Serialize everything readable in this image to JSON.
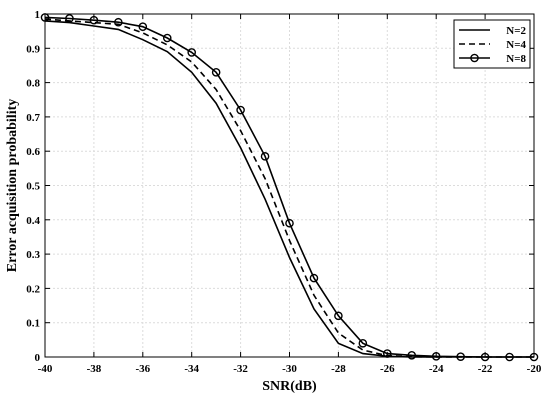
{
  "chart_data": {
    "type": "line",
    "xlabel": "SNR(dB)",
    "ylabel": "Error acquisition probability",
    "xlim": [
      -40,
      -20
    ],
    "ylim": [
      0,
      1
    ],
    "xticks": [
      -40,
      -38,
      -36,
      -34,
      -32,
      -30,
      -28,
      -26,
      -24,
      -22,
      -20
    ],
    "yticks": [
      0,
      0.1,
      0.2,
      0.3,
      0.4,
      0.5,
      0.6,
      0.7,
      0.8,
      0.9,
      1
    ],
    "grid": true,
    "legend_position": "top-right",
    "x": [
      -40,
      -39,
      -38,
      -37,
      -36,
      -35,
      -34,
      -33,
      -32,
      -31,
      -30,
      -29,
      -28,
      -27,
      -26,
      -25,
      -24,
      -23,
      -22,
      -21,
      -20
    ],
    "series": [
      {
        "name": "N=2",
        "style": "solid",
        "marker": "none",
        "values": [
          0.98,
          0.975,
          0.965,
          0.955,
          0.925,
          0.89,
          0.83,
          0.74,
          0.61,
          0.46,
          0.29,
          0.14,
          0.04,
          0.01,
          0.002,
          0,
          0,
          0,
          0,
          0,
          0
        ]
      },
      {
        "name": "N=4",
        "style": "dashed",
        "marker": "none",
        "values": [
          0.985,
          0.98,
          0.975,
          0.97,
          0.945,
          0.91,
          0.86,
          0.78,
          0.66,
          0.52,
          0.34,
          0.18,
          0.07,
          0.02,
          0.004,
          0.001,
          0,
          0,
          0,
          0,
          0
        ]
      },
      {
        "name": "N=8",
        "style": "solid",
        "marker": "circle",
        "values": [
          0.99,
          0.987,
          0.982,
          0.976,
          0.963,
          0.93,
          0.888,
          0.83,
          0.72,
          0.585,
          0.39,
          0.23,
          0.12,
          0.04,
          0.01,
          0.005,
          0.002,
          0.001,
          0,
          0,
          0
        ]
      }
    ]
  }
}
